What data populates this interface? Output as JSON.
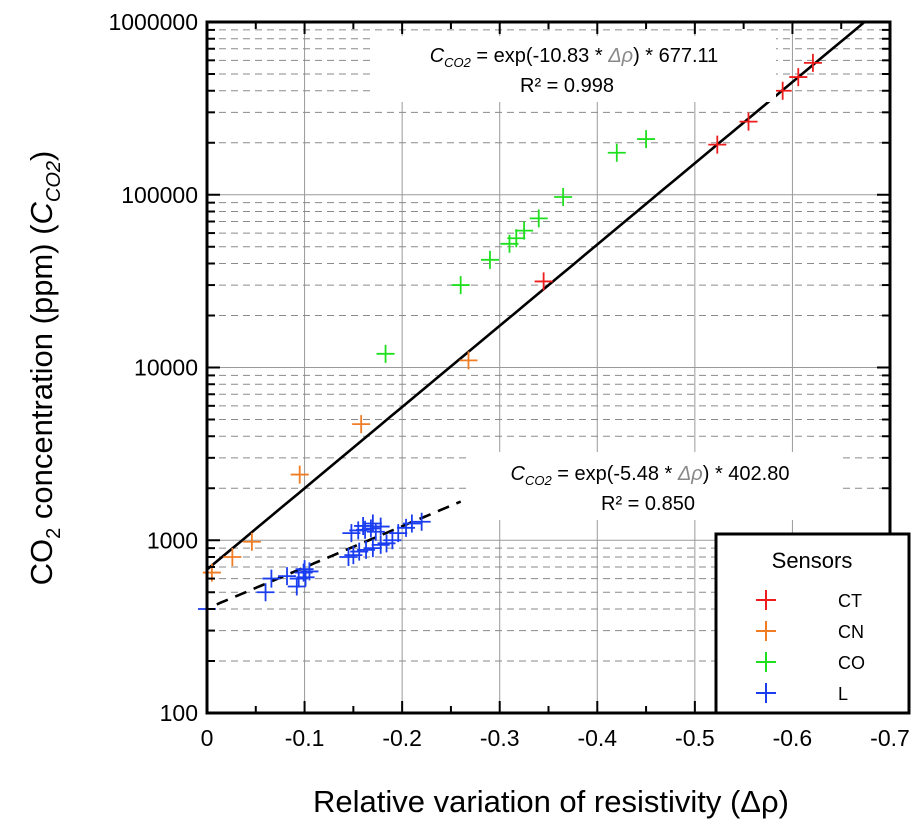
{
  "chart_data": {
    "type": "scatter",
    "xlabel": "Relative variation of resistivity (Δρ)",
    "ylabel_prefix": "CO",
    "ylabel_sub": "2",
    "ylabel_mid": " concentration (ppm) (",
    "ylabel_var": "C",
    "ylabel_var_sub": "CO2",
    "ylabel_suffix": ")",
    "x_scale": "linear",
    "x_reversed": true,
    "xlim": [
      0,
      -0.7
    ],
    "x_ticks": [
      0,
      -0.1,
      -0.2,
      -0.3,
      -0.4,
      -0.5,
      -0.6,
      -0.7
    ],
    "x_tick_labels": [
      "0",
      "-0.1",
      "-0.2",
      "-0.3",
      "-0.4",
      "-0.5",
      "-0.6",
      "-0.7"
    ],
    "y_scale": "log",
    "ylim": [
      100,
      1000000
    ],
    "y_ticks": [
      100,
      1000,
      10000,
      100000,
      1000000
    ],
    "y_tick_labels": [
      "100",
      "1000",
      "10000",
      "100000",
      "1000000"
    ],
    "grid": true,
    "legend": {
      "title": "Sensors",
      "position": "bottom-right",
      "entries": [
        "CT",
        "CN",
        "CO",
        "L"
      ]
    },
    "series": [
      {
        "name": "CT",
        "color": "#ee1c1c",
        "marker": "plus",
        "points": [
          [
            -0.345,
            31500
          ],
          [
            -0.523,
            195000
          ],
          [
            -0.555,
            265000
          ],
          [
            -0.59,
            400000
          ],
          [
            -0.606,
            480000
          ],
          [
            -0.621,
            580000
          ]
        ]
      },
      {
        "name": "CN",
        "color": "#f07c24",
        "marker": "plus",
        "points": [
          [
            -0.005,
            650
          ],
          [
            -0.026,
            800
          ],
          [
            -0.046,
            980
          ],
          [
            -0.095,
            2400
          ],
          [
            -0.158,
            4700
          ],
          [
            -0.268,
            11000
          ]
        ]
      },
      {
        "name": "CO",
        "color": "#1ee01e",
        "marker": "plus",
        "points": [
          [
            -0.183,
            12000
          ],
          [
            -0.26,
            30000
          ],
          [
            -0.29,
            42000
          ],
          [
            -0.31,
            52000
          ],
          [
            -0.317,
            56000
          ],
          [
            -0.325,
            62000
          ],
          [
            -0.34,
            73000
          ],
          [
            -0.365,
            97000
          ],
          [
            -0.42,
            175000
          ],
          [
            -0.45,
            210000
          ]
        ]
      },
      {
        "name": "L",
        "color": "#1a3df0",
        "marker": "plus",
        "points": [
          [
            0,
            400
          ],
          [
            -0.06,
            500
          ],
          [
            -0.066,
            600
          ],
          [
            -0.082,
            620
          ],
          [
            -0.092,
            540
          ],
          [
            -0.094,
            600
          ],
          [
            -0.099,
            650
          ],
          [
            -0.1,
            680
          ],
          [
            -0.101,
            610
          ],
          [
            -0.105,
            660
          ],
          [
            -0.145,
            800
          ],
          [
            -0.15,
            820
          ],
          [
            -0.156,
            860
          ],
          [
            -0.163,
            880
          ],
          [
            -0.17,
            900
          ],
          [
            -0.178,
            940
          ],
          [
            -0.184,
            960
          ],
          [
            -0.19,
            1000
          ],
          [
            -0.196,
            1100
          ],
          [
            -0.204,
            1180
          ],
          [
            -0.21,
            1250
          ],
          [
            -0.22,
            1280
          ],
          [
            -0.148,
            1100
          ],
          [
            -0.155,
            1140
          ],
          [
            -0.162,
            1150
          ],
          [
            -0.168,
            1170
          ],
          [
            -0.173,
            1120
          ],
          [
            -0.178,
            1200
          ],
          [
            -0.17,
            1250
          ],
          [
            -0.16,
            1210
          ]
        ]
      }
    ],
    "fits": [
      {
        "style": "solid",
        "color": "#000000",
        "a": -10.83,
        "b": 677.11,
        "x_range": [
          0,
          -0.7
        ],
        "equation_var": "C",
        "equation_var_sub": "CO2",
        "equation_rest": " = exp(-10.83 * ",
        "equation_delta": "Δρ",
        "equation_tail": ") * 677.11",
        "r2": "R² = 0.998"
      },
      {
        "style": "dashed",
        "color": "#000000",
        "a": -5.48,
        "b": 402.8,
        "x_range": [
          -0.01,
          -0.26
        ],
        "equation_var": "C",
        "equation_var_sub": "CO2",
        "equation_rest": " = exp(-5.48 * ",
        "equation_delta": "Δρ",
        "equation_tail": ") * 402.80",
        "r2": "R² = 0.850"
      }
    ]
  }
}
